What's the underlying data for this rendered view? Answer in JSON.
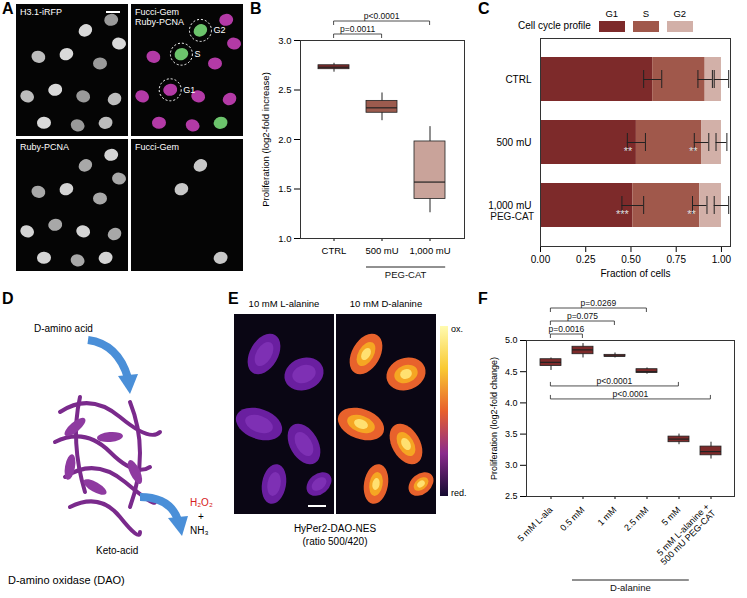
{
  "panel_labels": [
    "A",
    "B",
    "C",
    "D",
    "E",
    "F"
  ],
  "panel_a": {
    "tiles": [
      {
        "label": [
          "H3.1-iRFP"
        ]
      },
      {
        "label": [
          "Fucci-Gem",
          "Ruby-PCNA"
        ],
        "markers": [
          "G2",
          "S",
          "G1"
        ]
      },
      {
        "label": [
          "Ruby-PCNA"
        ]
      },
      {
        "label": [
          "Fucci-Gem"
        ]
      }
    ]
  },
  "panel_d": {
    "substrate": "D-amino acid",
    "product": "Keto-acid",
    "byproducts": [
      "H₂O₂",
      "+",
      "NH₃"
    ],
    "caption": "D-amino oxidase (DAO)"
  },
  "panel_e": {
    "images": [
      "10 mM L-alanine",
      "10 mM D-alanine"
    ],
    "caption": [
      "HyPer2-DAO-NES",
      "(ratio 500/420)"
    ],
    "colorbar_labels": [
      "ox.",
      "red."
    ]
  },
  "chart_data": [
    {
      "type": "box",
      "categories": [
        "CTRL",
        "500 mU",
        "1,000 mU"
      ],
      "category_groups": [
        {
          "label": "PEG-CAT",
          "from": "500 mU",
          "to": "1,000 mU"
        }
      ],
      "colors": [
        "#7d2a2a",
        "#9c5b4e",
        "#c9a39a"
      ],
      "boxes": [
        {
          "min": 2.68,
          "q1": 2.71,
          "median": 2.73,
          "q3": 2.75,
          "max": 2.77
        },
        {
          "min": 2.19,
          "q1": 2.27,
          "median": 2.32,
          "q3": 2.39,
          "max": 2.47
        },
        {
          "min": 1.26,
          "q1": 1.4,
          "median": 1.57,
          "q3": 1.98,
          "max": 2.13
        }
      ],
      "y_label": "Proliferation (log2-fold increase)",
      "ylim": [
        1,
        3
      ],
      "yticks": [
        {
          "value": 1,
          "label": "1.0"
        },
        1.5,
        {
          "value": 2,
          "label": "2.0"
        },
        2.5,
        {
          "value": 3,
          "label": "3.0"
        }
      ],
      "comparisons": [
        {
          "from": "CTRL",
          "to": "500 mU",
          "label": "p=0.0011"
        },
        {
          "from": "CTRL",
          "to": "1,000 mU",
          "label": "p<0.0001"
        }
      ]
    },
    {
      "type": "bar",
      "orientation": "horizontal",
      "stacked": true,
      "legend": "top",
      "legend_title": "Cell cycle profile",
      "categories": [
        "CTRL",
        "500 mU",
        "1,000 mU"
      ],
      "category_groups": [
        {
          "label": "PEG-CAT",
          "from": "1,000 mU",
          "to": "1,000 mU"
        }
      ],
      "series": [
        {
          "name": "G1",
          "color": "#7d2a2a",
          "values": [
            0.62,
            0.53,
            0.51
          ],
          "errors": [
            0.05,
            0.05,
            0.06
          ],
          "annotations": [
            null,
            "**",
            "***"
          ]
        },
        {
          "name": "S",
          "color": "#a0584b",
          "values": [
            0.29,
            0.36,
            0.37
          ],
          "errors": [
            0.04,
            0.04,
            0.04
          ],
          "annotations": [
            null,
            "**",
            "**"
          ]
        },
        {
          "name": "G2",
          "color": "#d2b0a8",
          "values": [
            0.09,
            0.11,
            0.12
          ],
          "errors": [
            0.04,
            0.03,
            0.04
          ],
          "annotations": [
            null,
            null,
            null
          ]
        }
      ],
      "x_label": "Fraction of cells",
      "xlim": [
        0,
        1.05
      ],
      "xticks": [
        {
          "value": 0,
          "label": "0.00"
        },
        0.25,
        {
          "value": 0.5,
          "label": "0.50"
        },
        0.75,
        {
          "value": 1,
          "label": "1.00"
        }
      ]
    },
    {
      "type": "box",
      "categories": [
        "5 mM L-ala",
        "0.5 mM",
        "1 mM",
        "2.5 mM",
        "5 mM",
        "5 mM L-alanine +\n500 mU PEG-CAT"
      ],
      "category_groups": [
        {
          "label": "D-alanine",
          "from": "0.5 mM",
          "to": "5 mM"
        }
      ],
      "color": "#7d2a2a",
      "boxes": [
        {
          "min": 4.52,
          "q1": 4.59,
          "median": 4.65,
          "q3": 4.7,
          "max": 4.72
        },
        {
          "min": 4.72,
          "q1": 4.78,
          "median": 4.85,
          "q3": 4.9,
          "max": 4.95
        },
        {
          "min": 4.72,
          "q1": 4.74,
          "median": 4.75,
          "q3": 4.77,
          "max": 4.8
        },
        {
          "min": 4.46,
          "q1": 4.48,
          "median": 4.5,
          "q3": 4.54,
          "max": 4.56
        },
        {
          "min": 3.33,
          "q1": 3.37,
          "median": 3.42,
          "q3": 3.46,
          "max": 3.5
        },
        {
          "min": 3.1,
          "q1": 3.16,
          "median": 3.22,
          "q3": 3.3,
          "max": 3.37
        }
      ],
      "y_label": "Proliferation (log2-fold change)",
      "ylim": [
        2.5,
        5
      ],
      "yticks": [
        2.5,
        {
          "value": 3,
          "label": "3.0"
        },
        3.5,
        {
          "value": 4,
          "label": "4.0"
        },
        4.5,
        {
          "value": 5,
          "label": "5.0"
        }
      ],
      "comparisons": [
        {
          "from": "5 mM L-ala",
          "to": "0.5 mM",
          "label": "p=0.0016"
        },
        {
          "from": "5 mM L-ala",
          "to": "1 mM",
          "label": "p=0.075"
        },
        {
          "from": "5 mM L-ala",
          "to": "2.5 mM",
          "label": "p=0.0269"
        },
        {
          "from": "5 mM L-ala",
          "to": "5 mM",
          "label": "p<0.0001"
        },
        {
          "from": "5 mM L-ala",
          "to": "5 mM L-alanine +\n500 mU PEG-CAT",
          "label": "p<0.0001"
        }
      ]
    }
  ]
}
